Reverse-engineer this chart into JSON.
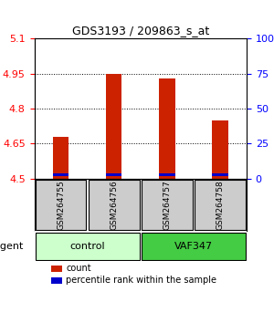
{
  "title": "GDS3193 / 209863_s_at",
  "samples": [
    "GSM264755",
    "GSM264756",
    "GSM264757",
    "GSM264758"
  ],
  "groups": [
    "control",
    "control",
    "VAF347",
    "VAF347"
  ],
  "group_labels": [
    "control",
    "VAF347"
  ],
  "group_colors": [
    "#b3ffb3",
    "#00cc00"
  ],
  "sample_bg_color": "#cccccc",
  "count_values": [
    4.68,
    4.95,
    4.93,
    4.75
  ],
  "percentile_values": [
    4.515,
    4.515,
    4.515,
    4.515
  ],
  "bar_bottom": 4.5,
  "ylim_left": [
    4.5,
    5.1
  ],
  "yticks_left": [
    4.5,
    4.65,
    4.8,
    4.95,
    5.1
  ],
  "yticks_right": [
    0,
    25,
    50,
    75,
    100
  ],
  "bar_color_count": "#cc2200",
  "bar_color_pct": "#0000cc",
  "bar_width": 0.3,
  "grid_color": "#000000",
  "xlabel_rotation": -90,
  "agent_label": "agent",
  "legend_count": "count",
  "legend_pct": "percentile rank within the sample"
}
